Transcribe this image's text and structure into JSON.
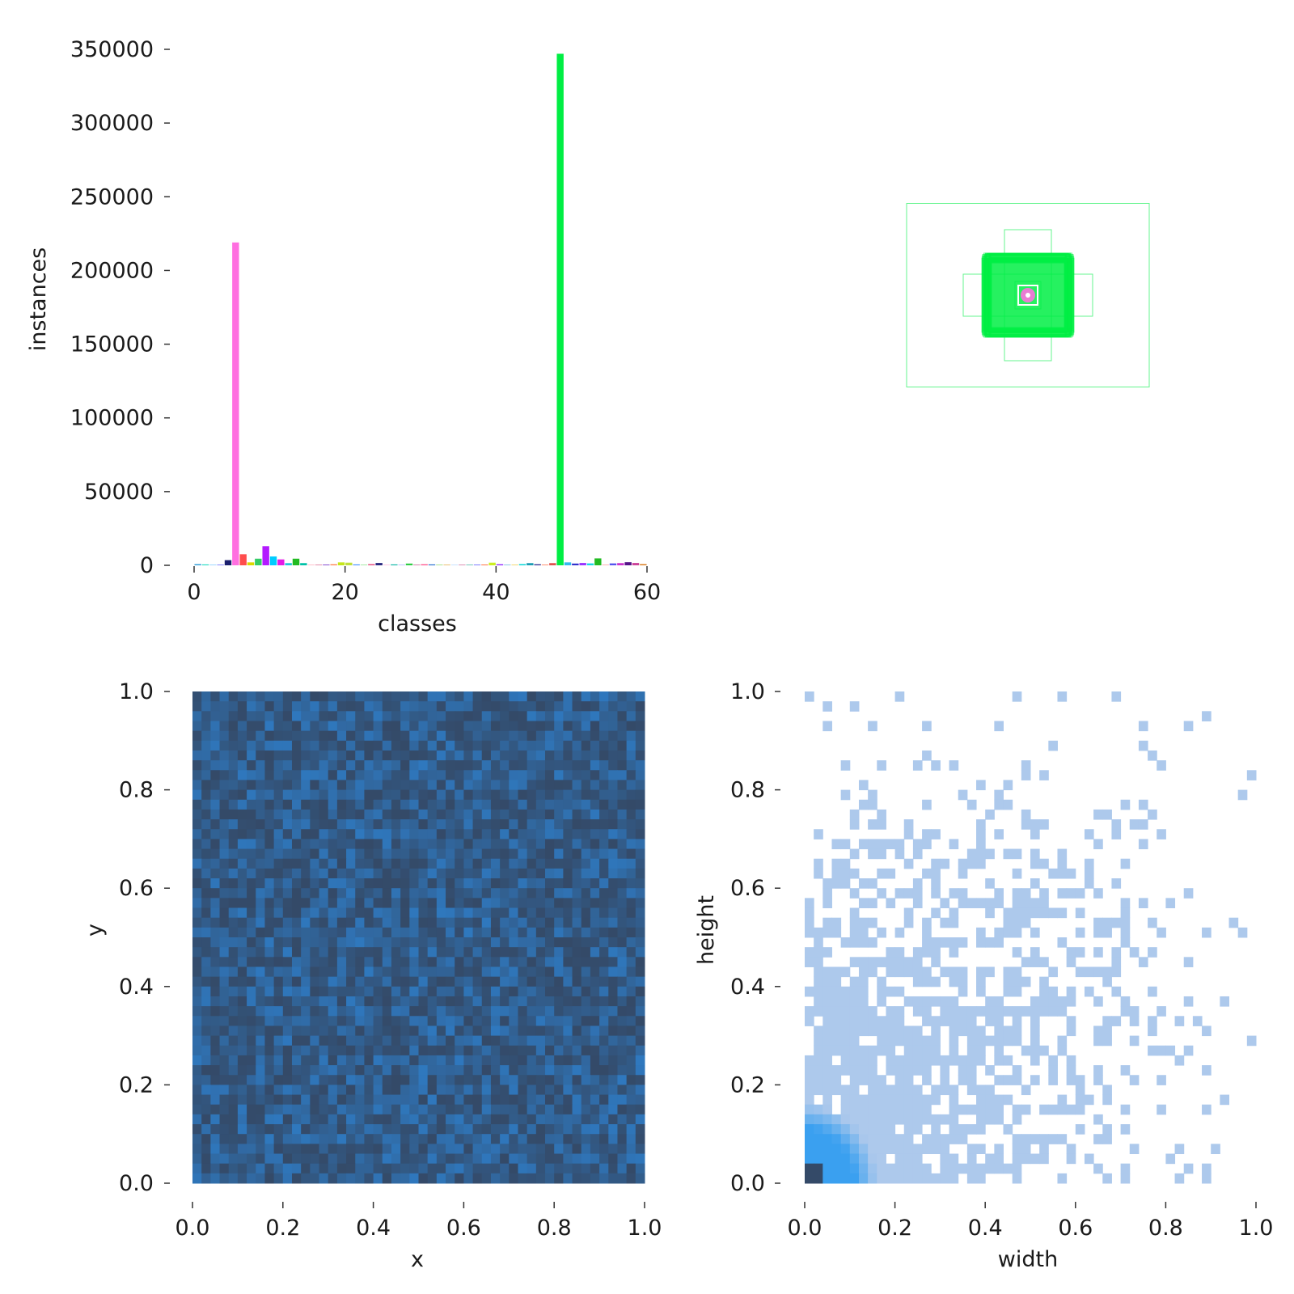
{
  "chart_data": [
    {
      "type": "bar",
      "panel": "top-left",
      "xlabel": "classes",
      "ylabel": "instances",
      "xlim": [
        0,
        60
      ],
      "ylim": [
        0,
        350000
      ],
      "x_ticks": [
        0,
        20,
        40,
        60
      ],
      "y_ticks": [
        0,
        50000,
        100000,
        150000,
        200000,
        250000,
        300000,
        350000
      ],
      "categories": [
        0,
        1,
        2,
        3,
        4,
        5,
        6,
        7,
        8,
        9,
        10,
        11,
        12,
        13,
        14,
        15,
        16,
        17,
        18,
        19,
        20,
        21,
        22,
        23,
        24,
        25,
        26,
        27,
        28,
        29,
        30,
        31,
        32,
        33,
        34,
        35,
        36,
        37,
        38,
        39,
        40,
        41,
        42,
        43,
        44,
        45,
        46,
        47,
        48,
        49,
        50,
        51,
        52,
        53,
        54,
        55,
        56,
        57,
        58,
        59
      ],
      "values": [
        800,
        600,
        300,
        500,
        3500,
        219000,
        7500,
        2000,
        4500,
        13000,
        6000,
        4000,
        1500,
        4500,
        1500,
        300,
        300,
        500,
        700,
        2000,
        1800,
        600,
        300,
        800,
        1600,
        300,
        600,
        300,
        1200,
        300,
        700,
        600,
        300,
        300,
        300,
        400,
        300,
        400,
        500,
        1800,
        700,
        300,
        300,
        800,
        1500,
        700,
        500,
        1500,
        347000,
        2000,
        1200,
        1600,
        1300,
        4700,
        400,
        1300,
        1500,
        2100,
        1600,
        800
      ],
      "colors": [
        "#2f9dd8",
        "#1ad9c0",
        "#4db8ff",
        "#7a7aff",
        "#1a1e6e",
        "#ff6fe0",
        "#ff4d4d",
        "#d9d900",
        "#33cc66",
        "#b31aff",
        "#00ccff",
        "#e619e6",
        "#21c7d9",
        "#22bb22",
        "#00c2a8",
        "#ff8ca0",
        "#cc3366",
        "#7a3dcc",
        "#ff7a45",
        "#c5e61a",
        "#c0e03a",
        "#3d8cff",
        "#5cd65c",
        "#e64d80",
        "#2a2a80",
        "#ff99cc",
        "#00b3a0",
        "#8c8cff",
        "#2fcc44",
        "#b31a6b",
        "#ff4d88",
        "#1a66cc",
        "#66cc33",
        "#d98c00",
        "#99ccff",
        "#cc6699",
        "#009980",
        "#4d4dff",
        "#ff6633",
        "#ccee22",
        "#8a1aff",
        "#3399cc",
        "#e6b800",
        "#00d6d6",
        "#1a9bb3",
        "#2a2a90",
        "#ff8866",
        "#e05050",
        "#00ee44",
        "#33bbee",
        "#3333cc",
        "#9933ff",
        "#1ad9e6",
        "#22bb22",
        "#ff9999",
        "#5555ee",
        "#cc33cc",
        "#551188",
        "#cc4499",
        "#d97a1a"
      ]
    },
    {
      "type": "box_overlay",
      "panel": "top-right",
      "xlim": [
        0,
        1
      ],
      "ylim": [
        0,
        1
      ],
      "legend": "none",
      "colors": {
        "boxes": "#00ee44",
        "center": "#ff6fe0"
      }
    },
    {
      "type": "heatmap",
      "panel": "bottom-left",
      "xlabel": "x",
      "ylabel": "y",
      "xlim": [
        0,
        1
      ],
      "ylim": [
        0,
        1
      ],
      "x_ticks": [
        "0.0",
        "0.2",
        "0.4",
        "0.6",
        "0.8",
        "1.0"
      ],
      "y_ticks": [
        "0.0",
        "0.2",
        "0.4",
        "0.6",
        "0.8",
        "1.0"
      ],
      "bins": 50,
      "colors": {
        "low": "#344a68",
        "high": "#2f78be"
      }
    },
    {
      "type": "heatmap",
      "panel": "bottom-right",
      "xlabel": "width",
      "ylabel": "height",
      "xlim": [
        0,
        1
      ],
      "ylim": [
        0,
        1
      ],
      "x_ticks": [
        "0.0",
        "0.2",
        "0.4",
        "0.6",
        "0.8",
        "1.0"
      ],
      "y_ticks": [
        "0.0",
        "0.2",
        "0.4",
        "0.6",
        "0.8",
        "1.0"
      ],
      "bins": 50,
      "colors": {
        "low": "#adc9ec",
        "mid": "#3aa0f0",
        "high": "#344a68"
      }
    }
  ]
}
